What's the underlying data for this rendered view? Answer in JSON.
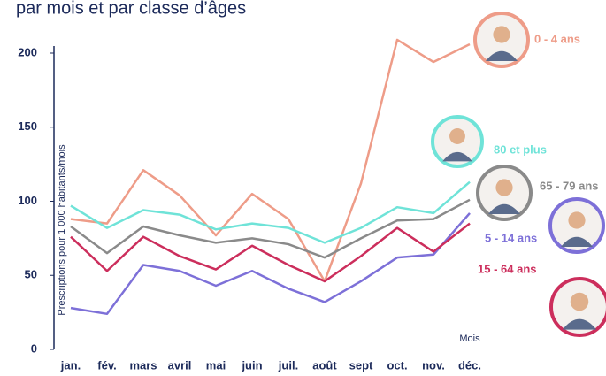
{
  "chart_data": {
    "type": "line",
    "title": "par mois et par classe d’âges",
    "y_label": "Prescriptions pour 1 000 habitants/mois",
    "x_label": "Mois",
    "categories": [
      "jan.",
      "fév.",
      "mars",
      "avril",
      "mai",
      "juin",
      "juil.",
      "août",
      "sept",
      "oct.",
      "nov.",
      "déc."
    ],
    "series": [
      {
        "name": "0 - 4 ans",
        "color": "#ee9c88",
        "values": [
          88,
          85,
          121,
          104,
          77,
          105,
          88,
          46,
          112,
          209,
          194,
          206
        ]
      },
      {
        "name": "80 et plus",
        "color": "#6fe3d8",
        "values": [
          97,
          82,
          94,
          91,
          81,
          85,
          82,
          72,
          82,
          96,
          92,
          113
        ]
      },
      {
        "name": "65 - 79 ans",
        "color": "#8a8a8a",
        "values": [
          83,
          65,
          83,
          77,
          72,
          75,
          71,
          62,
          75,
          87,
          88,
          101
        ]
      },
      {
        "name": "5 - 14 ans",
        "color": "#7d70d8",
        "values": [
          28,
          24,
          57,
          53,
          43,
          53,
          41,
          32,
          46,
          62,
          64,
          92
        ]
      },
      {
        "name": "15 - 64 ans",
        "color": "#cc2e5c",
        "values": [
          76,
          53,
          76,
          63,
          54,
          70,
          57,
          46,
          63,
          82,
          66,
          85
        ]
      }
    ],
    "ylim": [
      0,
      205
    ],
    "yticks": [
      0,
      50,
      100,
      150,
      200
    ],
    "grid": false
  }
}
